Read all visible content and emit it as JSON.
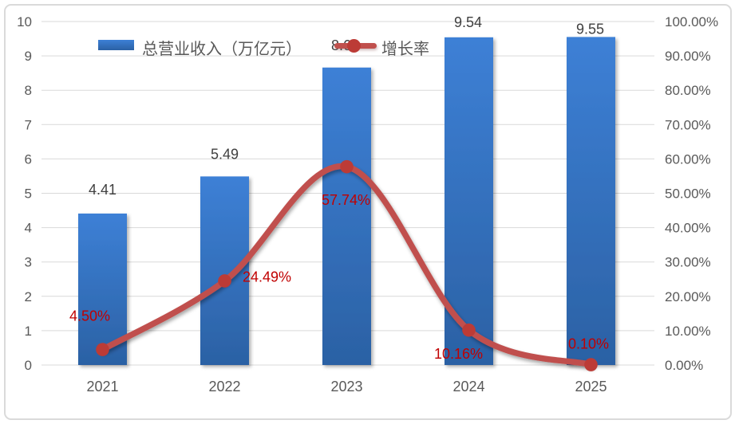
{
  "legend": {
    "items": [
      {
        "label": "总营业收入（万亿元）",
        "series": "bar"
      },
      {
        "label": "增长率",
        "series": "line"
      }
    ]
  },
  "chart_data": {
    "type": "bar+line",
    "title": "",
    "categories": [
      "2021",
      "2022",
      "2023",
      "2024",
      "2025"
    ],
    "series": [
      {
        "name": "总营业收入（万亿元）",
        "type": "bar",
        "axis": "left",
        "values": [
          4.41,
          5.49,
          8.66,
          9.54,
          9.55
        ],
        "data_labels": [
          "4.41",
          "5.49",
          "8.66",
          "9.54",
          "9.55"
        ]
      },
      {
        "name": "增长率",
        "type": "line",
        "axis": "right",
        "values": [
          4.5,
          24.49,
          57.74,
          10.16,
          0.1
        ],
        "data_labels": [
          "4.50%",
          "24.49%",
          "57.74%",
          "10.16%",
          "0.10%"
        ]
      }
    ],
    "left_axis": {
      "min": 0,
      "max": 10,
      "step": 1,
      "tick_labels": [
        "0",
        "1",
        "2",
        "3",
        "4",
        "5",
        "6",
        "7",
        "8",
        "9",
        "10"
      ]
    },
    "right_axis": {
      "min": 0,
      "max": 100,
      "step": 10,
      "tick_labels": [
        "0.00%",
        "10.00%",
        "20.00%",
        "30.00%",
        "40.00%",
        "50.00%",
        "60.00%",
        "70.00%",
        "80.00%",
        "90.00%",
        "100.00%"
      ]
    },
    "grid": true,
    "legend_position": "top-center-inside",
    "colors": {
      "bar_top": "#3D80D6",
      "bar_bottom": "#2B61A4",
      "line": "#C0504D",
      "marker": "#BC3B36",
      "value_label": "#3F3F3F",
      "pct_label": "#C00000",
      "axis_text": "#595959",
      "gridline": "#D9D9D9"
    }
  }
}
